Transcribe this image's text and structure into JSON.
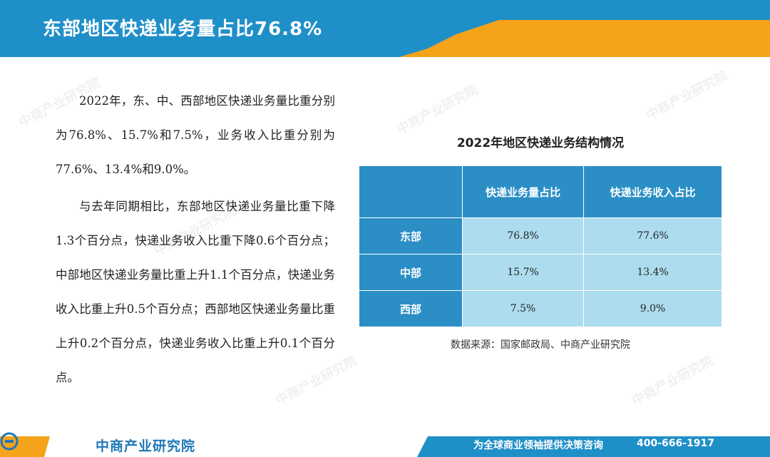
{
  "header": {
    "title": "东部地区快递业务量占比76.8%"
  },
  "body": {
    "paragraphs": [
      "2022年，东、中、西部地区快递业务量比重分别为76.8%、15.7%和7.5%，业务收入比重分别为77.6%、13.4%和9.0%。",
      "与去年同期相比，东部地区快递业务量比重下降1.3个百分点，快递业务收入比重下降0.6个百分点；中部地区快递业务量比重上升1.1个百分点，快递业务收入比重上升0.5个百分点；西部地区快递业务量比重上升0.2个百分点，快递业务收入比重上升0.1个百分点。"
    ]
  },
  "table": {
    "title": "2022年地区快递业务结构情况",
    "columns": [
      "",
      "快递业务量占比",
      "快递业务收入占比"
    ],
    "rows": [
      {
        "region": "东部",
        "volume_share": "76.8%",
        "revenue_share": "77.6%"
      },
      {
        "region": "中部",
        "volume_share": "15.7%",
        "revenue_share": "13.4%"
      },
      {
        "region": "西部",
        "volume_share": "7.5%",
        "revenue_share": "9.0%"
      }
    ],
    "source": "数据来源：国家邮政局、中商产业研究院"
  },
  "footer": {
    "brand": "中商产业研究院",
    "slogan": "为全球商业领袖提供决策咨询",
    "phone": "400-666-1917"
  },
  "watermark": "中商产业研究院",
  "colors": {
    "header_blue": "#1f8fc8",
    "accent_orange": "#f5a31a",
    "table_header": "#2b8fc6",
    "table_cell": "#acdcee"
  }
}
